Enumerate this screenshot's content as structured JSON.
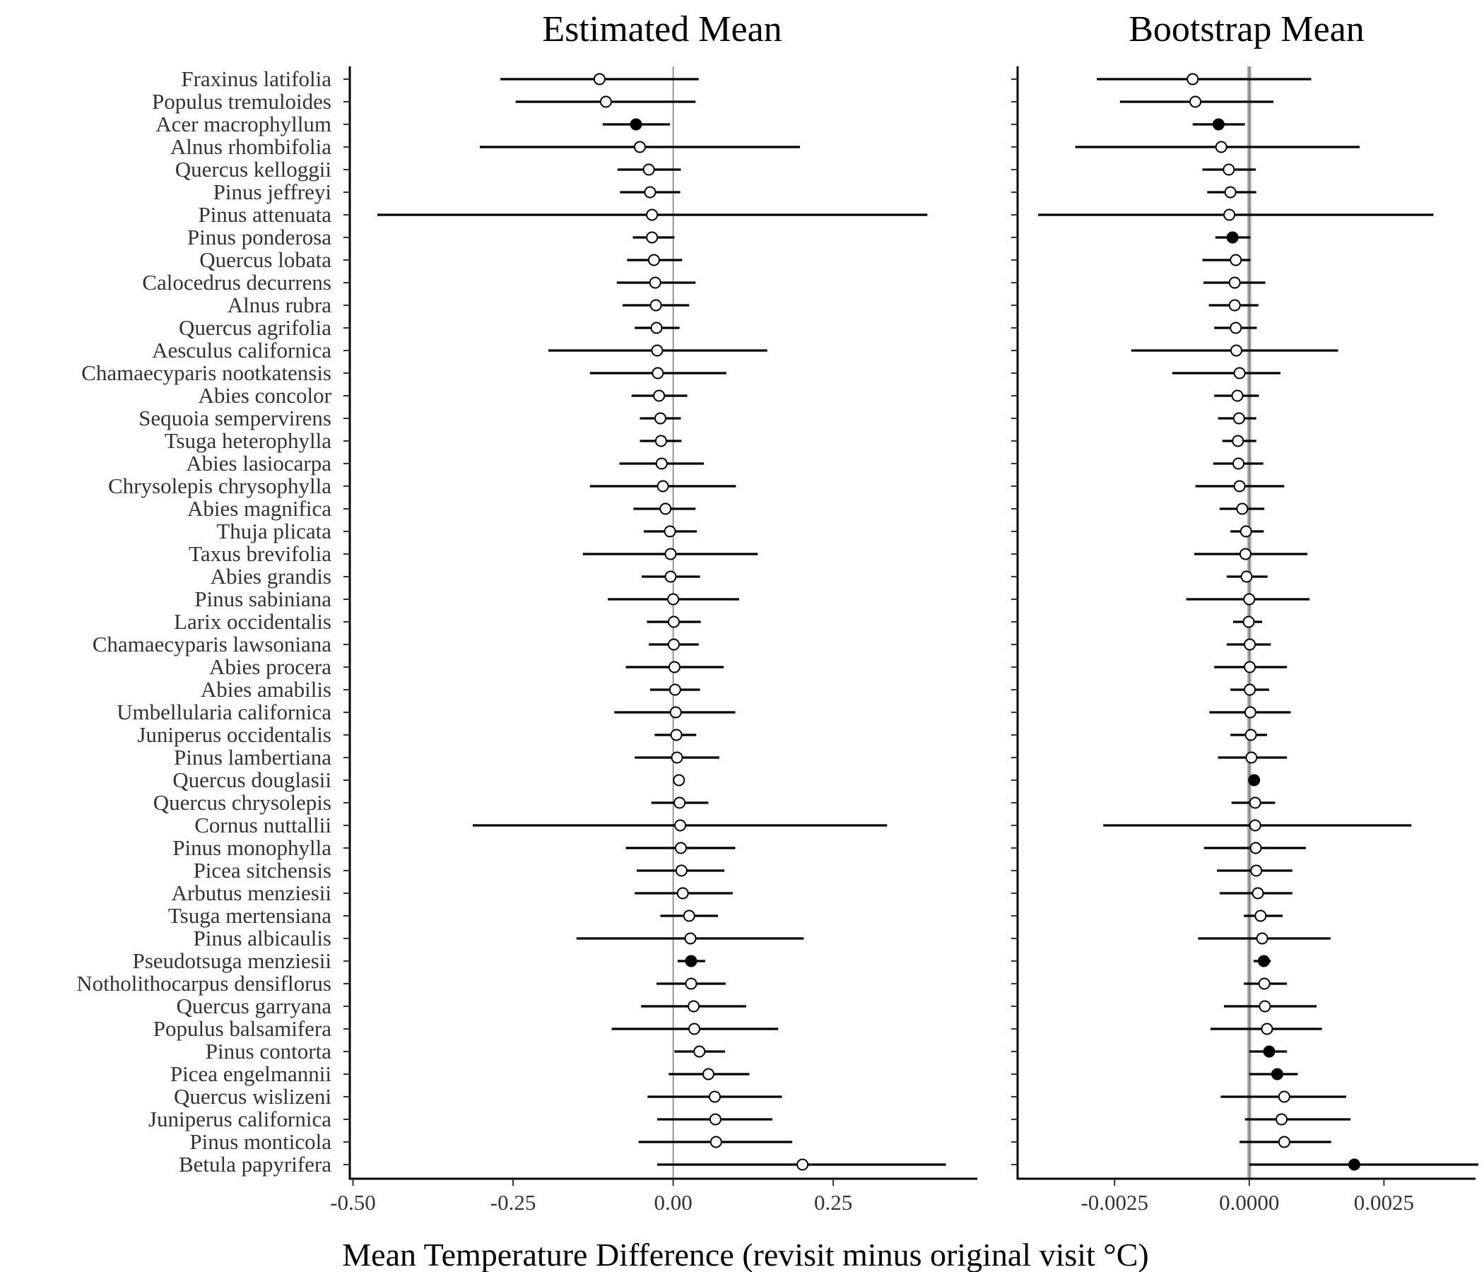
{
  "chart_data": {
    "type": "forest",
    "xlabel": "Mean Temperature Difference (revisit minus original visit °C)",
    "species": [
      "Fraxinus latifolia",
      "Populus tremuloides",
      "Acer macrophyllum",
      "Alnus rhombifolia",
      "Quercus kelloggii",
      "Pinus jeffreyi",
      "Pinus attenuata",
      "Pinus ponderosa",
      "Quercus lobata",
      "Calocedrus decurrens",
      "Alnus rubra",
      "Quercus agrifolia",
      "Aesculus californica",
      "Chamaecyparis nootkatensis",
      "Abies concolor",
      "Sequoia sempervirens",
      "Tsuga heterophylla",
      "Abies lasiocarpa",
      "Chrysolepis chrysophylla",
      "Abies magnifica",
      "Thuja plicata",
      "Taxus brevifolia",
      "Abies grandis",
      "Pinus sabiniana",
      "Larix occidentalis",
      "Chamaecyparis lawsoniana",
      "Abies procera",
      "Abies amabilis",
      "Umbellularia californica",
      "Juniperus occidentalis",
      "Pinus lambertiana",
      "Quercus douglasii",
      "Quercus chrysolepis",
      "Cornus nuttallii",
      "Pinus monophylla",
      "Picea sitchensis",
      "Arbutus menziesii",
      "Tsuga mertensiana",
      "Pinus albicaulis",
      "Pseudotsuga menziesii",
      "Notholithocarpus densiflorus",
      "Quercus garryana",
      "Populus balsamifera",
      "Pinus contorta",
      "Picea engelmannii",
      "Quercus wislizeni",
      "Juniperus californica",
      "Pinus monticola",
      "Betula papyrifera"
    ],
    "panels": [
      {
        "title": "Estimated Mean",
        "xlim": [
          -0.505,
          0.475
        ],
        "xticks": [
          -0.5,
          -0.25,
          0,
          0.25
        ],
        "xtick_labels": [
          "-0.50",
          "-0.25",
          "0.00",
          "0.25"
        ],
        "estimate": [
          -0.115,
          -0.105,
          -0.058,
          -0.052,
          -0.038,
          -0.036,
          -0.033,
          -0.033,
          -0.03,
          -0.028,
          -0.027,
          -0.026,
          -0.025,
          -0.024,
          -0.022,
          -0.02,
          -0.019,
          -0.018,
          -0.016,
          -0.012,
          -0.005,
          -0.004,
          -0.004,
          0.0,
          0.001,
          0.001,
          0.002,
          0.003,
          0.004,
          0.005,
          0.006,
          0.009,
          0.01,
          0.011,
          0.012,
          0.013,
          0.015,
          0.025,
          0.027,
          0.028,
          0.028,
          0.032,
          0.033,
          0.041,
          0.055,
          0.065,
          0.066,
          0.067,
          0.202
        ],
        "lower": [
          -0.27,
          -0.246,
          -0.11,
          -0.302,
          -0.087,
          -0.083,
          -0.462,
          -0.063,
          -0.072,
          -0.088,
          -0.079,
          -0.06,
          -0.195,
          -0.13,
          -0.065,
          -0.052,
          -0.052,
          -0.084,
          -0.13,
          -0.062,
          -0.046,
          -0.141,
          -0.049,
          -0.102,
          -0.041,
          -0.038,
          -0.074,
          -0.036,
          -0.092,
          -0.029,
          -0.06,
          null,
          -0.034,
          -0.313,
          -0.074,
          -0.057,
          -0.06,
          -0.02,
          -0.151,
          0.007,
          -0.026,
          -0.05,
          -0.096,
          0.002,
          -0.007,
          -0.04,
          -0.025,
          -0.054,
          -0.025
        ],
        "upper": [
          0.04,
          0.035,
          -0.005,
          0.198,
          0.012,
          0.011,
          0.397,
          0.002,
          0.014,
          0.035,
          0.025,
          0.01,
          0.147,
          0.083,
          0.022,
          0.012,
          0.013,
          0.048,
          0.098,
          0.035,
          0.037,
          0.132,
          0.042,
          0.103,
          0.043,
          0.04,
          0.079,
          0.042,
          0.097,
          0.036,
          0.072,
          null,
          0.055,
          0.334,
          0.097,
          0.08,
          0.093,
          0.07,
          0.204,
          0.05,
          0.082,
          0.114,
          0.164,
          0.081,
          0.119,
          0.17,
          0.155,
          0.186,
          0.426
        ],
        "significant": [
          false,
          false,
          true,
          false,
          false,
          false,
          false,
          false,
          false,
          false,
          false,
          false,
          false,
          false,
          false,
          false,
          false,
          false,
          false,
          false,
          false,
          false,
          false,
          false,
          false,
          false,
          false,
          false,
          false,
          false,
          false,
          false,
          false,
          false,
          false,
          false,
          false,
          false,
          false,
          true,
          false,
          false,
          false,
          false,
          false,
          false,
          false,
          false,
          false
        ]
      },
      {
        "title": "Bootstrap Mean",
        "xlim": [
          -0.0043,
          0.0042
        ],
        "xticks": [
          -0.0025,
          0,
          0.0025
        ],
        "xtick_labels": [
          "-0.0025",
          "0.0000",
          "0.0025"
        ],
        "estimate": [
          -0.00105,
          -0.001,
          -0.00057,
          -0.00052,
          -0.00038,
          -0.00035,
          -0.00037,
          -0.00031,
          -0.00025,
          -0.00027,
          -0.00027,
          -0.00025,
          -0.00024,
          -0.00018,
          -0.00022,
          -0.00019,
          -0.00021,
          -0.0002,
          -0.00018,
          -0.00013,
          -6e-05,
          -7e-05,
          -5e-05,
          0.0,
          -1e-05,
          1e-05,
          1e-05,
          1e-05,
          2e-05,
          3e-05,
          4e-05,
          9e-05,
          0.00011,
          0.00011,
          0.00012,
          0.00013,
          0.00016,
          0.00021,
          0.00024,
          0.00027,
          0.00028,
          0.00029,
          0.00033,
          0.00037,
          0.00052,
          0.00065,
          0.0006,
          0.00065,
          0.00195
        ],
        "lower": [
          -0.00283,
          -0.0024,
          -0.00105,
          -0.00323,
          -0.00087,
          -0.00078,
          -0.00392,
          -0.00063,
          -0.00087,
          -0.00085,
          -0.00075,
          -0.00065,
          -0.00219,
          -0.00143,
          -0.00065,
          -0.00058,
          -0.0005,
          -0.00067,
          -0.001,
          -0.00055,
          -0.00035,
          -0.00102,
          -0.00042,
          -0.00117,
          -0.0003,
          -0.00042,
          -0.00065,
          -0.00035,
          -0.00074,
          -0.00035,
          -0.00058,
          null,
          -0.00033,
          -0.00271,
          -0.00084,
          -0.0006,
          -0.00055,
          -0.0001,
          -0.00095,
          8e-05,
          -0.0001,
          -0.00047,
          -0.00072,
          0.0,
          0.0,
          -0.00053,
          -8e-05,
          -0.00018,
          0.0
        ],
        "upper": [
          0.00115,
          0.00045,
          -8e-05,
          0.00205,
          0.00012,
          0.00013,
          0.00342,
          2e-05,
          2e-05,
          0.0003,
          0.00017,
          0.00014,
          0.00165,
          0.00058,
          0.00018,
          0.00013,
          0.00013,
          0.00026,
          0.00065,
          0.00028,
          0.00027,
          0.00108,
          0.00034,
          0.00112,
          0.00024,
          0.0004,
          0.0007,
          0.00037,
          0.00077,
          0.00033,
          0.0007,
          null,
          0.00048,
          0.00301,
          0.00105,
          0.0008,
          0.0008,
          0.00062,
          0.00151,
          0.0004,
          0.0007,
          0.00125,
          0.00135,
          0.0007,
          0.0009,
          0.0018,
          0.00188,
          0.00152,
          0.00425
        ],
        "significant": [
          false,
          false,
          true,
          false,
          false,
          false,
          false,
          true,
          false,
          false,
          false,
          false,
          false,
          false,
          false,
          false,
          false,
          false,
          false,
          false,
          false,
          false,
          false,
          false,
          false,
          false,
          false,
          false,
          false,
          false,
          false,
          true,
          false,
          false,
          false,
          false,
          false,
          false,
          false,
          true,
          false,
          false,
          false,
          true,
          true,
          false,
          false,
          false,
          true
        ]
      }
    ]
  }
}
